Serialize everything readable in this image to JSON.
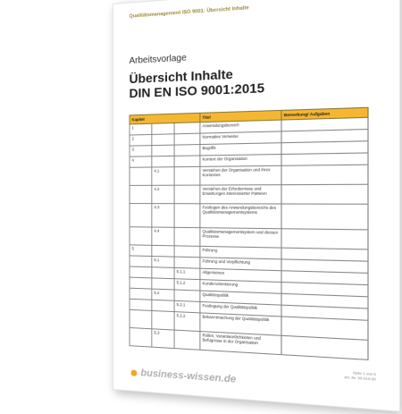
{
  "document": {
    "header_line": "Qualitätsmanagement ISO 9001: Übersicht Inhalte",
    "label_small": "Arbeitsvorlage",
    "title_line1": "Übersicht Inhalte",
    "title_line2": "DIN EN ISO 9001:2015",
    "table": {
      "headers": [
        "Kapitel",
        "Titel",
        "Bemerkung/ Aufgaben"
      ],
      "rows": [
        {
          "c1": "1",
          "c2": "",
          "c3": "",
          "title": "Anwendungsbereich",
          "size": "r1"
        },
        {
          "c1": "2",
          "c2": "",
          "c3": "",
          "title": "Normative Verweise",
          "size": "r1"
        },
        {
          "c1": "3",
          "c2": "",
          "c3": "",
          "title": "Begriffe",
          "size": "r1"
        },
        {
          "c1": "4",
          "c2": "",
          "c3": "",
          "title": "Kontext der Organisation",
          "size": "r1"
        },
        {
          "c1": "",
          "c2": "4.1",
          "c3": "",
          "title": "Verstehen der Organisation und ihres Kontextes",
          "size": "r2"
        },
        {
          "c1": "",
          "c2": "4.2",
          "c3": "",
          "title": "Verstehen der Erfordernisse und Erwartungen interessierter Parteien",
          "size": "r2"
        },
        {
          "c1": "",
          "c2": "4.3",
          "c3": "",
          "title": "Festlegen des Anwendungsbereichs des Qualitätsmanagementsystems",
          "size": "r3"
        },
        {
          "c1": "",
          "c2": "4.4",
          "c3": "",
          "title": "Qualitätsmanagementsystem und dessen Prozesse",
          "size": "r2"
        },
        {
          "c1": "5",
          "c2": "",
          "c3": "",
          "title": "Führung",
          "size": "r1"
        },
        {
          "c1": "",
          "c2": "5.1",
          "c3": "",
          "title": "Führung und Verpflichtung",
          "size": "r1"
        },
        {
          "c1": "",
          "c2": "",
          "c3": "5.1.1",
          "title": "Allgemeines",
          "size": "r1"
        },
        {
          "c1": "",
          "c2": "",
          "c3": "5.1.2",
          "title": "Kundenorientierung",
          "size": "r1"
        },
        {
          "c1": "",
          "c2": "5.2",
          "c3": "",
          "title": "Qualitätspolitik",
          "size": "r1"
        },
        {
          "c1": "",
          "c2": "",
          "c3": "5.2.1",
          "title": "Festlegung der Qualitätspolitik",
          "size": "r1"
        },
        {
          "c1": "",
          "c2": "",
          "c3": "5.2.2",
          "title": "Bekanntmachung der Qualitätspolitik",
          "size": "r2"
        },
        {
          "c1": "",
          "c2": "5.3",
          "c3": "",
          "title": "Rollen, Verantwortlichkeiten und Befugnisse in der Organisation",
          "size": "r2"
        }
      ]
    },
    "footer_page": "Seite 1 von 5",
    "footer_number": "Art.-Nr. 00-019-00",
    "brand": "business-wissen.de"
  }
}
